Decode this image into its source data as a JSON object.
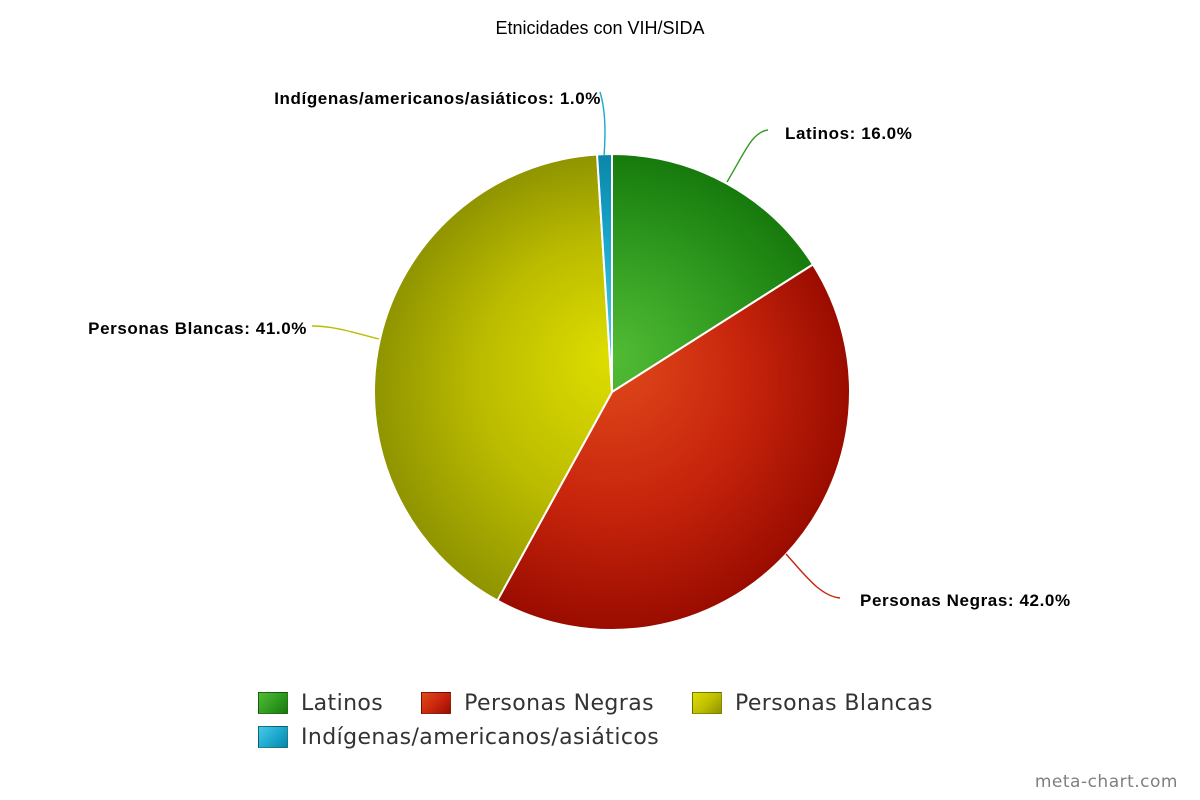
{
  "chart_data": {
    "type": "pie",
    "title": "Etnicidades con VIH/SIDA",
    "slices": [
      {
        "name": "Latinos",
        "value": 16.0,
        "label": "Latinos: 16.0%",
        "color": "#2f9a1f",
        "light": "#52bb35",
        "dark": "#167a0c"
      },
      {
        "name": "Personas Negras",
        "value": 42.0,
        "label": "Personas Negras: 42.0%",
        "color": "#c8250c",
        "light": "#e04a1c",
        "dark": "#9a0c00"
      },
      {
        "name": "Personas Blancas",
        "value": 41.0,
        "label": "Personas Blancas: 41.0%",
        "color": "#bcbc00",
        "light": "#dede00",
        "dark": "#8f9400"
      },
      {
        "name": "Indígenas/americanos/asiáticos",
        "value": 1.0,
        "label": "Indígenas/americanos/asiáticos: 1.0%",
        "color": "#1aa8cc",
        "light": "#4cc8e8",
        "dark": "#0a86a8"
      }
    ],
    "legend": {
      "position": "bottom"
    }
  },
  "credit": "meta-chart.com"
}
